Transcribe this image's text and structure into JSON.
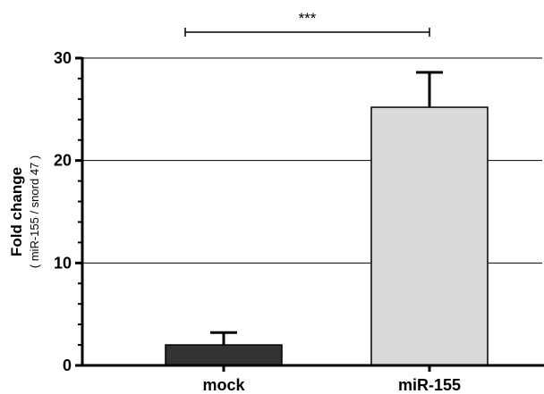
{
  "chart_data": {
    "type": "bar",
    "title": "",
    "categories": [
      "mock",
      "miR-155"
    ],
    "values": [
      2.0,
      25.2
    ],
    "error_upper": [
      1.2,
      3.4
    ],
    "bar_colors": [
      "#333333",
      "#d9d9d9"
    ],
    "ylabel": "Fold change",
    "ylabel_sub": "( miR-155 / snord 47 )",
    "xlabel": "",
    "ylim": [
      0,
      30
    ],
    "yticks": [
      0,
      10,
      20,
      30
    ],
    "grid": true,
    "significance": {
      "label": "***",
      "between": [
        0,
        1
      ]
    }
  }
}
